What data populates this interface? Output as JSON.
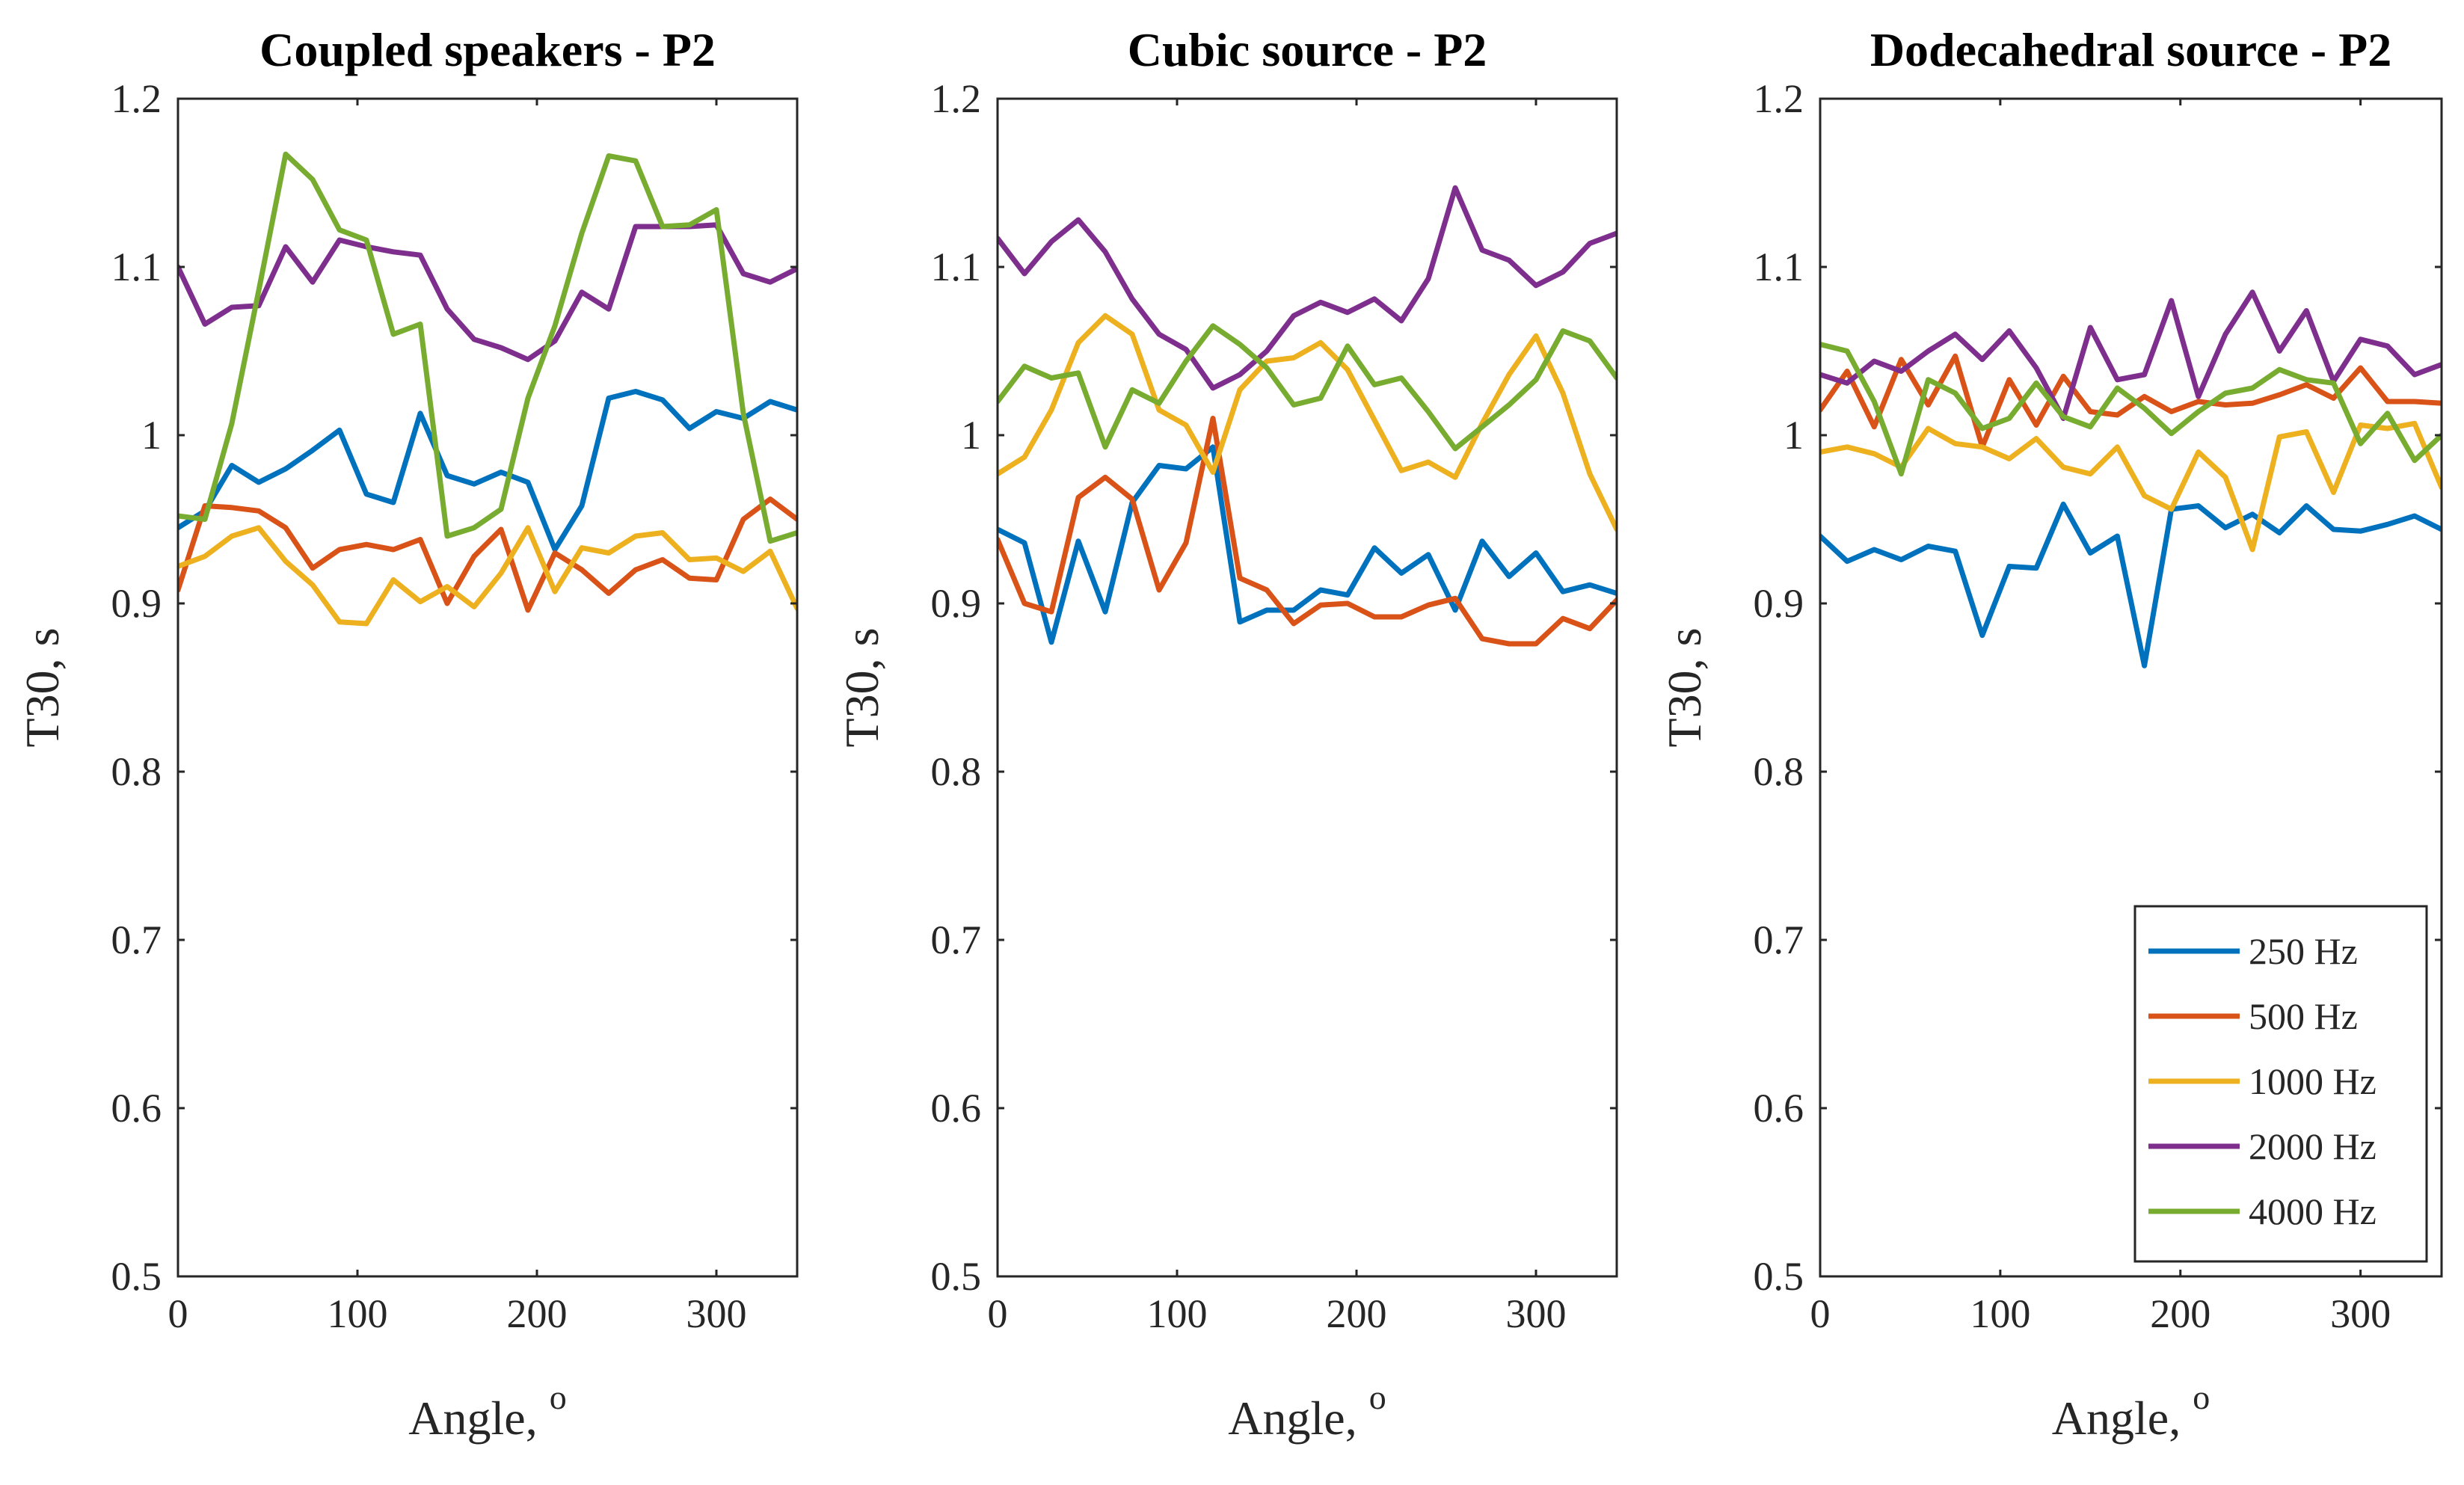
{
  "chart_data": [
    {
      "type": "line",
      "title": "Coupled speakers - P2",
      "xlabel": "Angle, ",
      "xlabel_sup": "o",
      "ylabel": "T30, s",
      "xlim": [
        0,
        345
      ],
      "ylim": [
        0.5,
        1.2
      ],
      "xticks": [
        "0",
        "100",
        "200",
        "300"
      ],
      "yticks": [
        "0.5",
        "0.6",
        "0.7",
        "0.8",
        "0.9",
        "1",
        "1.1",
        "1.2"
      ],
      "x": [
        0,
        15,
        30,
        45,
        60,
        75,
        90,
        105,
        120,
        135,
        150,
        165,
        180,
        195,
        210,
        225,
        240,
        255,
        270,
        285,
        300,
        315,
        330,
        345
      ],
      "series": [
        {
          "name": "250 Hz",
          "values": [
            0.945,
            0.955,
            0.982,
            0.972,
            0.98,
            0.991,
            1.003,
            0.965,
            0.96,
            1.013,
            0.976,
            0.971,
            0.978,
            0.972,
            0.932,
            0.958,
            1.022,
            1.026,
            1.021,
            1.004,
            1.014,
            1.01,
            1.02,
            1.015
          ]
        },
        {
          "name": "500 Hz",
          "values": [
            0.908,
            0.958,
            0.957,
            0.955,
            0.945,
            0.921,
            0.932,
            0.935,
            0.932,
            0.938,
            0.9,
            0.928,
            0.944,
            0.896,
            0.93,
            0.92,
            0.906,
            0.92,
            0.926,
            0.915,
            0.914,
            0.95,
            0.962,
            0.95
          ]
        },
        {
          "name": "1000 Hz",
          "values": [
            0.922,
            0.928,
            0.94,
            0.945,
            0.925,
            0.911,
            0.889,
            0.888,
            0.914,
            0.901,
            0.91,
            0.898,
            0.918,
            0.945,
            0.907,
            0.933,
            0.93,
            0.94,
            0.942,
            0.926,
            0.927,
            0.919,
            0.931,
            0.897
          ]
        },
        {
          "name": "2000 Hz",
          "values": [
            1.1,
            1.066,
            1.076,
            1.077,
            1.112,
            1.091,
            1.116,
            1.112,
            1.109,
            1.107,
            1.075,
            1.057,
            1.052,
            1.045,
            1.056,
            1.085,
            1.075,
            1.124,
            1.124,
            1.124,
            1.125,
            1.096,
            1.091,
            1.099
          ]
        },
        {
          "name": "4000 Hz",
          "values": [
            0.952,
            0.95,
            1.007,
            1.086,
            1.167,
            1.152,
            1.122,
            1.116,
            1.06,
            1.066,
            0.94,
            0.945,
            0.956,
            1.022,
            1.065,
            1.12,
            1.166,
            1.163,
            1.124,
            1.125,
            1.134,
            1.013,
            0.937,
            0.942
          ]
        }
      ]
    },
    {
      "type": "line",
      "title": "Cubic source - P2",
      "xlabel": "Angle, ",
      "xlabel_sup": "o",
      "ylabel": "T30, s",
      "xlim": [
        0,
        345
      ],
      "ylim": [
        0.5,
        1.2
      ],
      "xticks": [
        "0",
        "100",
        "200",
        "300"
      ],
      "yticks": [
        "0.5",
        "0.6",
        "0.7",
        "0.8",
        "0.9",
        "1",
        "1.1",
        "1.2"
      ],
      "x": [
        0,
        15,
        30,
        45,
        60,
        75,
        90,
        105,
        120,
        135,
        150,
        165,
        180,
        195,
        210,
        225,
        240,
        255,
        270,
        285,
        300,
        315,
        330,
        345
      ],
      "series": [
        {
          "name": "250 Hz",
          "values": [
            0.944,
            0.936,
            0.877,
            0.937,
            0.895,
            0.96,
            0.982,
            0.98,
            0.993,
            0.889,
            0.896,
            0.896,
            0.908,
            0.905,
            0.933,
            0.918,
            0.929,
            0.896,
            0.937,
            0.916,
            0.93,
            0.907,
            0.911,
            0.906
          ]
        },
        {
          "name": "500 Hz",
          "values": [
            0.938,
            0.9,
            0.895,
            0.963,
            0.975,
            0.962,
            0.908,
            0.936,
            1.01,
            0.915,
            0.908,
            0.888,
            0.899,
            0.9,
            0.892,
            0.892,
            0.899,
            0.903,
            0.879,
            0.876,
            0.876,
            0.891,
            0.885,
            0.902
          ]
        },
        {
          "name": "1000 Hz",
          "values": [
            0.977,
            0.987,
            1.015,
            1.055,
            1.071,
            1.06,
            1.015,
            1.006,
            0.978,
            1.027,
            1.044,
            1.046,
            1.055,
            1.039,
            1.009,
            0.979,
            0.984,
            0.975,
            1.007,
            1.036,
            1.059,
            1.025,
            0.977,
            0.944
          ]
        },
        {
          "name": "2000 Hz",
          "values": [
            1.117,
            1.096,
            1.115,
            1.128,
            1.109,
            1.081,
            1.06,
            1.051,
            1.028,
            1.036,
            1.05,
            1.071,
            1.079,
            1.073,
            1.081,
            1.068,
            1.093,
            1.147,
            1.11,
            1.104,
            1.089,
            1.097,
            1.114,
            1.12
          ]
        },
        {
          "name": "4000 Hz",
          "values": [
            1.02,
            1.041,
            1.034,
            1.037,
            0.993,
            1.027,
            1.019,
            1.044,
            1.065,
            1.054,
            1.04,
            1.018,
            1.022,
            1.053,
            1.03,
            1.034,
            1.014,
            0.992,
            1.005,
            1.018,
            1.033,
            1.062,
            1.056,
            1.034
          ]
        }
      ]
    },
    {
      "type": "line",
      "title": "Dodecahedral source - P2",
      "xlabel": "Angle, ",
      "xlabel_sup": "o",
      "ylabel": "T30, s",
      "xlim": [
        0,
        345
      ],
      "ylim": [
        0.5,
        1.2
      ],
      "xticks": [
        "0",
        "100",
        "200",
        "300"
      ],
      "yticks": [
        "0.5",
        "0.6",
        "0.7",
        "0.8",
        "0.9",
        "1",
        "1.1",
        "1.2"
      ],
      "legend_position": "bottom-right",
      "x": [
        0,
        15,
        30,
        45,
        60,
        75,
        90,
        105,
        120,
        135,
        150,
        165,
        180,
        195,
        210,
        225,
        240,
        255,
        270,
        285,
        300,
        315,
        330,
        345
      ],
      "series": [
        {
          "name": "250 Hz",
          "values": [
            0.94,
            0.925,
            0.932,
            0.926,
            0.934,
            0.931,
            0.881,
            0.922,
            0.921,
            0.959,
            0.93,
            0.94,
            0.863,
            0.956,
            0.958,
            0.945,
            0.953,
            0.942,
            0.958,
            0.944,
            0.943,
            0.947,
            0.952,
            0.944
          ]
        },
        {
          "name": "500 Hz",
          "values": [
            1.015,
            1.038,
            1.005,
            1.045,
            1.018,
            1.047,
            0.993,
            1.033,
            1.006,
            1.035,
            1.014,
            1.012,
            1.023,
            1.014,
            1.02,
            1.018,
            1.019,
            1.024,
            1.03,
            1.022,
            1.04,
            1.02,
            1.02,
            1.019
          ]
        },
        {
          "name": "1000 Hz",
          "values": [
            0.99,
            0.993,
            0.989,
            0.981,
            1.004,
            0.995,
            0.993,
            0.986,
            0.998,
            0.981,
            0.977,
            0.993,
            0.964,
            0.956,
            0.99,
            0.975,
            0.932,
            0.999,
            1.002,
            0.966,
            1.006,
            1.004,
            1.007,
            0.969
          ]
        },
        {
          "name": "2000 Hz",
          "values": [
            1.036,
            1.031,
            1.044,
            1.038,
            1.05,
            1.06,
            1.045,
            1.062,
            1.04,
            1.01,
            1.064,
            1.033,
            1.036,
            1.08,
            1.023,
            1.06,
            1.085,
            1.05,
            1.074,
            1.032,
            1.057,
            1.053,
            1.036,
            1.042
          ]
        },
        {
          "name": "4000 Hz",
          "values": [
            1.054,
            1.05,
            1.02,
            0.977,
            1.033,
            1.025,
            1.004,
            1.01,
            1.031,
            1.011,
            1.005,
            1.028,
            1.016,
            1.001,
            1.014,
            1.025,
            1.028,
            1.039,
            1.033,
            1.031,
            0.995,
            1.013,
            0.985,
            1.0
          ]
        }
      ]
    }
  ],
  "colors": {
    "250 Hz": "#0072BD",
    "500 Hz": "#D95319",
    "1000 Hz": "#EDB120",
    "2000 Hz": "#7E2F8E",
    "4000 Hz": "#77AC30"
  }
}
